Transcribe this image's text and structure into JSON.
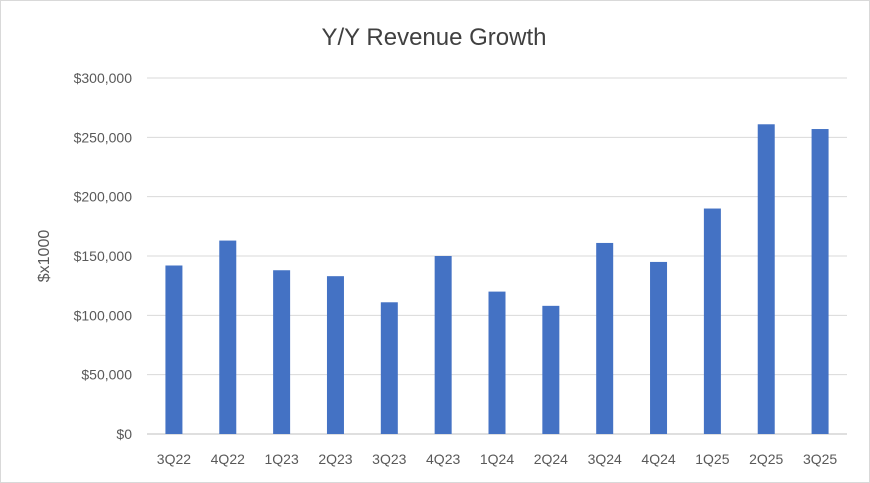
{
  "chart_data": {
    "type": "bar",
    "title": "Y/Y Revenue Growth",
    "xlabel": "",
    "ylabel": "$x1000",
    "categories": [
      "3Q22",
      "4Q22",
      "1Q23",
      "2Q23",
      "3Q23",
      "4Q23",
      "1Q24",
      "2Q24",
      "3Q24",
      "4Q24",
      "1Q25",
      "2Q25",
      "3Q25"
    ],
    "values": [
      142000,
      163000,
      138000,
      133000,
      111000,
      150000,
      120000,
      108000,
      161000,
      145000,
      190000,
      261000,
      257000
    ],
    "ylim": [
      0,
      300000
    ],
    "yticks": [
      0,
      50000,
      100000,
      150000,
      200000,
      250000,
      300000
    ],
    "ytick_labels": [
      "$0",
      "$50,000",
      "$100,000",
      "$150,000",
      "$200,000",
      "$250,000",
      "$300,000"
    ],
    "bar_color": "#4472C4",
    "grid": true,
    "legend": "none"
  }
}
